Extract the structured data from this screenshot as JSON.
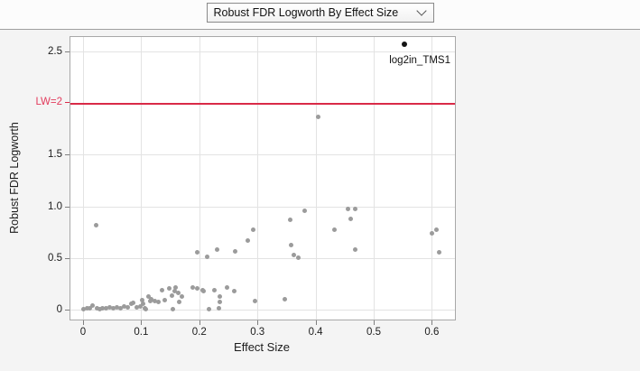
{
  "toolbar": {
    "selector_label": "Robust FDR Logworth By Effect Size"
  },
  "colors": {
    "ref_line_red": "#D92A47",
    "ref_label_red": "#E23B5C",
    "point_gray": "#9B9B9B",
    "point_black": "#141414"
  },
  "chart_data": {
    "type": "scatter",
    "title": "Robust FDR Logworth By Effect Size",
    "xlabel": "Effect Size",
    "ylabel": "Robust FDR Logworth",
    "xlim": [
      -0.022,
      0.64
    ],
    "ylim": [
      -0.1,
      2.64
    ],
    "grid": true,
    "x_ticks": {
      "values": [
        0,
        0.1,
        0.2,
        0.3,
        0.4,
        0.5,
        0.6
      ],
      "labels": [
        "0",
        "0.1",
        "0.2",
        "0.3",
        "0.4",
        "0.5",
        "0.6"
      ]
    },
    "y_ticks": {
      "values": [
        0,
        0.5,
        1.0,
        1.5,
        2.5
      ],
      "labels": [
        "0",
        "0.5",
        "1.0",
        "1.5",
        "2.5"
      ]
    },
    "ref_line": {
      "value": 2,
      "label": "LW=2"
    },
    "labeled_point": {
      "x": 0.553,
      "y": 2.57,
      "label": "log2in_TMS1"
    },
    "points": [
      [
        0.0,
        0.0
      ],
      [
        0.007,
        0.01
      ],
      [
        0.012,
        0.01
      ],
      [
        0.016,
        0.04
      ],
      [
        0.024,
        0.01
      ],
      [
        0.028,
        0.0
      ],
      [
        0.034,
        0.01
      ],
      [
        0.039,
        0.01
      ],
      [
        0.046,
        0.02
      ],
      [
        0.052,
        0.01
      ],
      [
        0.059,
        0.02
      ],
      [
        0.064,
        0.01
      ],
      [
        0.07,
        0.03
      ],
      [
        0.077,
        0.02
      ],
      [
        0.083,
        0.05
      ],
      [
        0.086,
        0.06
      ],
      [
        0.093,
        0.02
      ],
      [
        0.098,
        0.03
      ],
      [
        0.102,
        0.09
      ],
      [
        0.104,
        0.05
      ],
      [
        0.107,
        0.01
      ],
      [
        0.108,
        0.0
      ],
      [
        0.113,
        0.12
      ],
      [
        0.115,
        0.08
      ],
      [
        0.118,
        0.1
      ],
      [
        0.124,
        0.08
      ],
      [
        0.129,
        0.07
      ],
      [
        0.136,
        0.19
      ],
      [
        0.141,
        0.09
      ],
      [
        0.149,
        0.2
      ],
      [
        0.153,
        0.13
      ],
      [
        0.154,
        0.0
      ],
      [
        0.157,
        0.18
      ],
      [
        0.159,
        0.21
      ],
      [
        0.164,
        0.16
      ],
      [
        0.166,
        0.07
      ],
      [
        0.17,
        0.12
      ],
      [
        0.188,
        0.21
      ],
      [
        0.196,
        0.2
      ],
      [
        0.206,
        0.19
      ],
      [
        0.207,
        0.18
      ],
      [
        0.216,
        0.0
      ],
      [
        0.226,
        0.19
      ],
      [
        0.234,
        0.01
      ],
      [
        0.236,
        0.12
      ],
      [
        0.236,
        0.07
      ],
      [
        0.247,
        0.21
      ],
      [
        0.26,
        0.18
      ],
      [
        0.296,
        0.08
      ],
      [
        0.347,
        0.1
      ],
      [
        0.196,
        0.55
      ],
      [
        0.213,
        0.51
      ],
      [
        0.23,
        0.58
      ],
      [
        0.262,
        0.56
      ],
      [
        0.283,
        0.67
      ],
      [
        0.292,
        0.77
      ],
      [
        0.358,
        0.62
      ],
      [
        0.362,
        0.53
      ],
      [
        0.37,
        0.5
      ],
      [
        0.357,
        0.87
      ],
      [
        0.381,
        0.96
      ],
      [
        0.433,
        0.77
      ],
      [
        0.456,
        0.97
      ],
      [
        0.468,
        0.97
      ],
      [
        0.461,
        0.88
      ],
      [
        0.468,
        0.58
      ],
      [
        0.6,
        0.74
      ],
      [
        0.608,
        0.77
      ],
      [
        0.612,
        0.55
      ],
      [
        0.022,
        0.82
      ],
      [
        0.404,
        1.87
      ]
    ]
  }
}
